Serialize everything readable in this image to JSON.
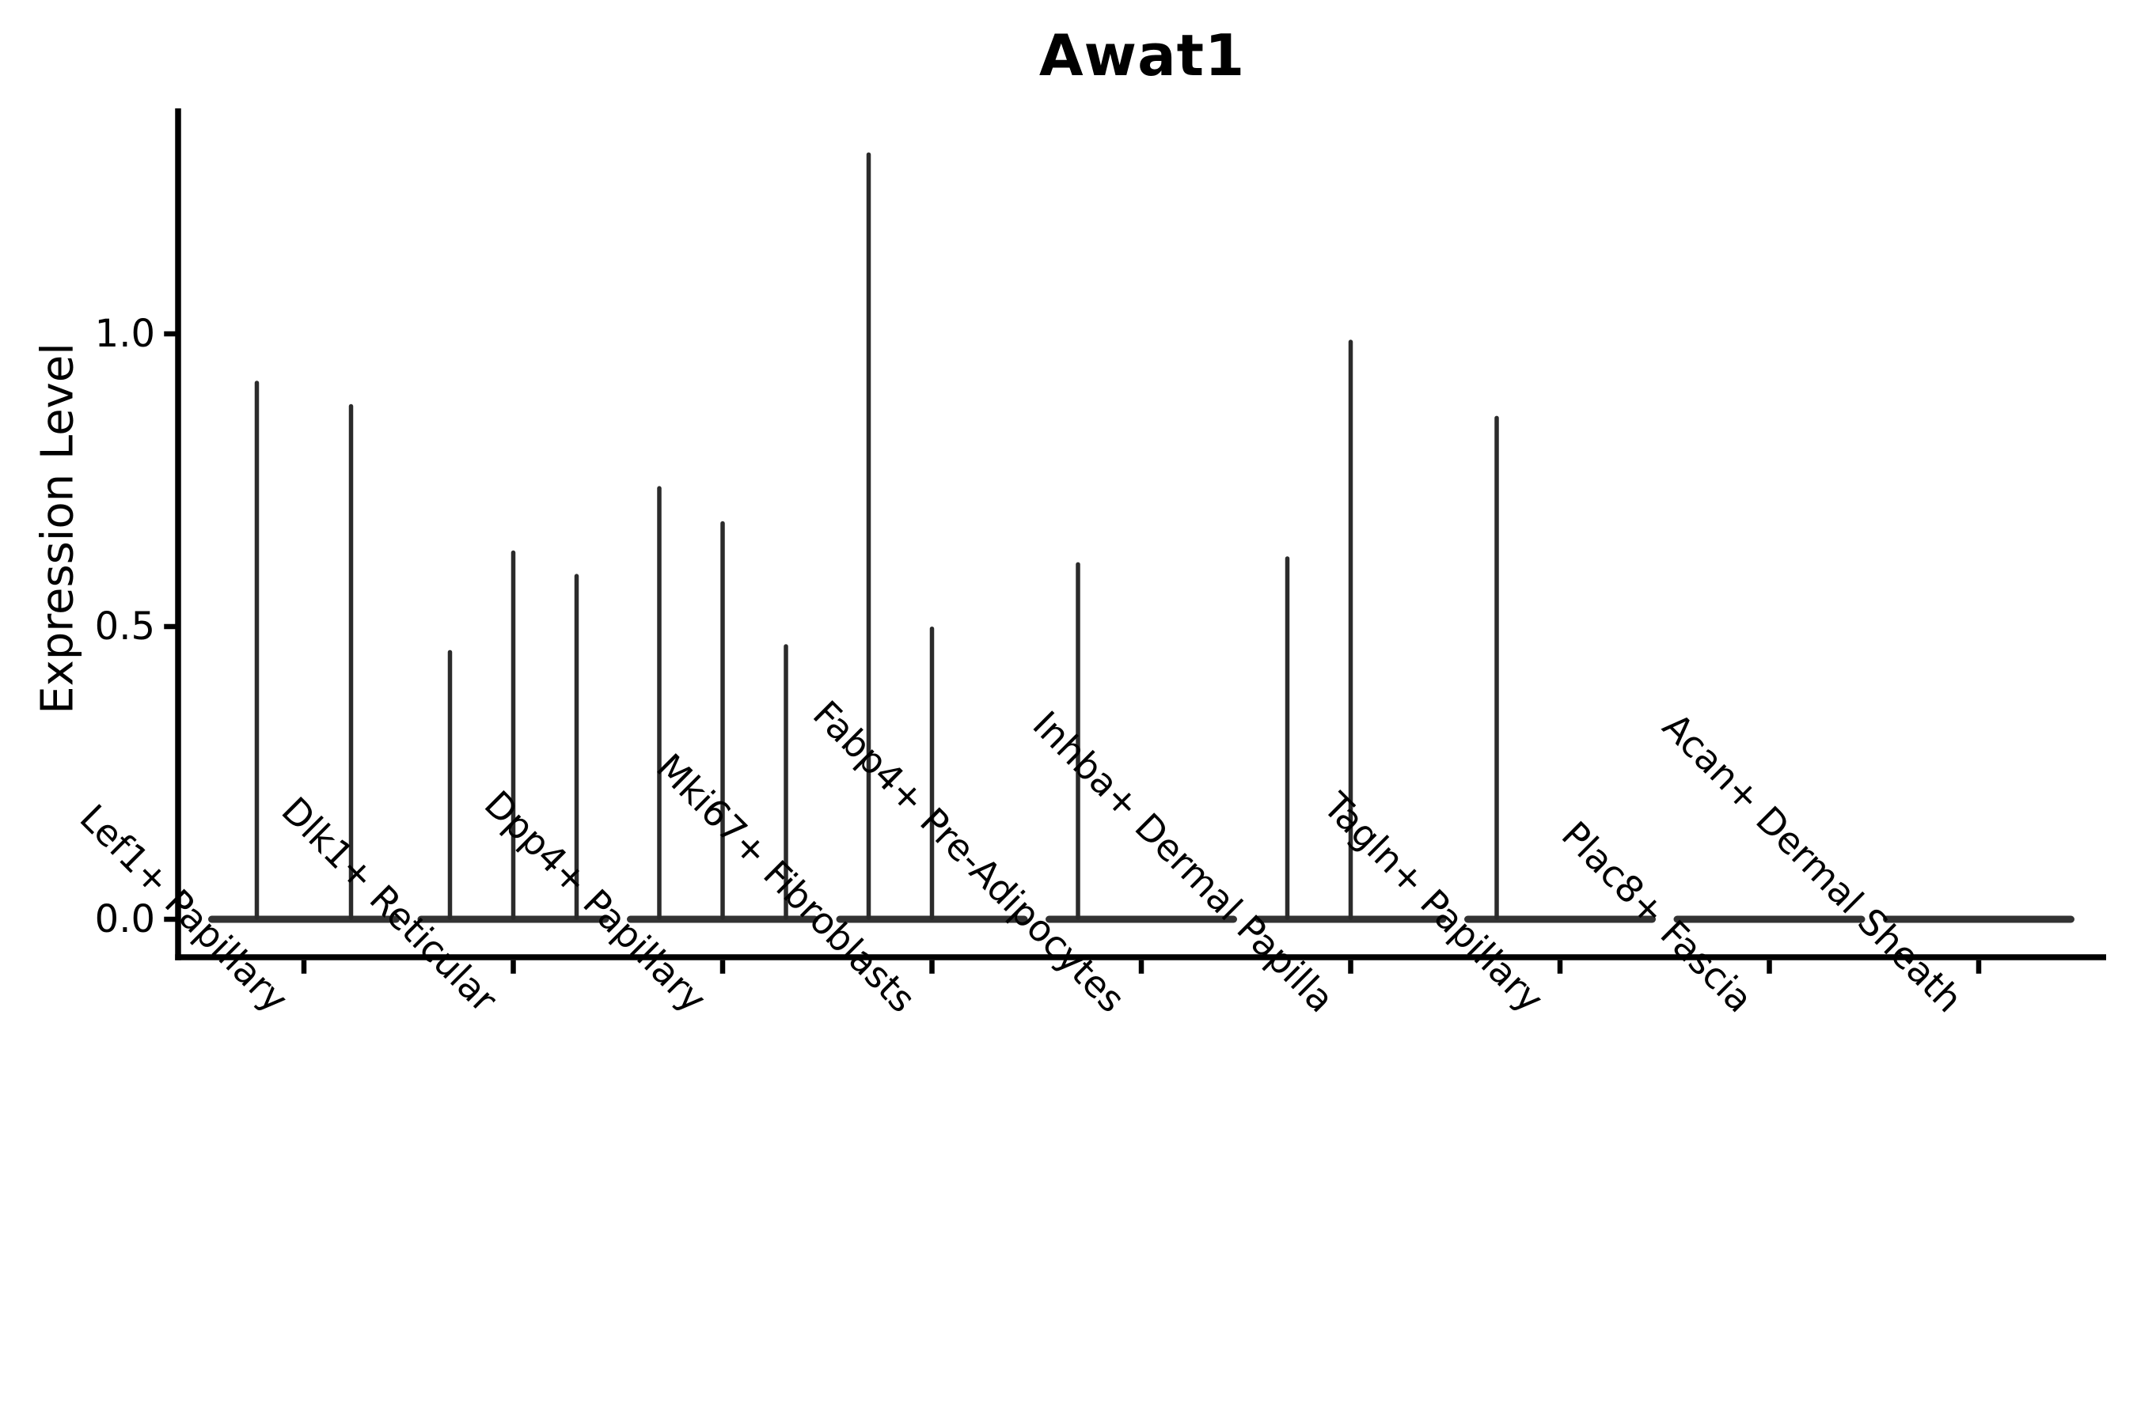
{
  "title": "Awat1",
  "axes": {
    "y_label": "Expression Level",
    "y_ticks": [
      {
        "label": "0.0",
        "value": 0.0
      },
      {
        "label": "0.5",
        "value": 0.5
      },
      {
        "label": "1.0",
        "value": 1.0
      }
    ],
    "x_categories": [
      "Lef1+ Papillary",
      "Dlk1+ Reticular",
      "Dpp4+ Papillary",
      "Mki67+ Fibroblasts",
      "Fabp4+ Pre-Adipocytes",
      "Inhba+ Dermal Papilla",
      "Tagln+ Papillary",
      "Plac8+ Fascia",
      "Acan+ Dermal Sheath"
    ]
  },
  "colors": {
    "spike": "#2b2b2b",
    "baseline": "#333333",
    "axis": "#000000",
    "text": "#000000",
    "background": "#ffffff"
  },
  "chart_data": {
    "type": "violin",
    "title": "Awat1",
    "xlabel": "",
    "ylabel": "Expression Level",
    "ylim": [
      -0.065,
      1.385
    ],
    "y_tick_values": [
      0.0,
      0.5,
      1.0
    ],
    "x_tick_rotation": 45,
    "grid": false,
    "legend": "none",
    "description": "Needle-thin violins collapsed at 0 with sparse high-expression spikes; spike value = maximum Expression Level reached per violin, 0 = flat baseline only.",
    "categories": [
      "Lef1+ Papillary",
      "Dlk1+ Reticular",
      "Dpp4+ Papillary",
      "Mki67+ Fibroblasts",
      "Fabp4+ Pre-Adipocytes",
      "Inhba+ Dermal Papilla",
      "Tagln+ Papillary",
      "Plac8+ Fascia",
      "Acan+ Dermal Sheath"
    ],
    "violins": [
      {
        "category": "Lef1+ Papillary",
        "spikes": [
          0.92,
          0.88
        ]
      },
      {
        "category": "Dlk1+ Reticular",
        "spikes": [
          0.46,
          0.63,
          0.59
        ]
      },
      {
        "category": "Dpp4+ Papillary",
        "spikes": [
          0.74,
          0.68,
          0.47
        ]
      },
      {
        "category": "Mki67+ Fibroblasts",
        "spikes": [
          1.31,
          0.5,
          0
        ]
      },
      {
        "category": "Fabp4+ Pre-Adipocytes",
        "spikes": [
          0.61,
          0,
          0
        ]
      },
      {
        "category": "Inhba+ Dermal Papilla",
        "spikes": [
          0.62,
          0.99,
          0
        ]
      },
      {
        "category": "Tagln+ Papillary",
        "spikes": [
          0.86,
          0,
          0
        ]
      },
      {
        "category": "Plac8+ Fascia",
        "spikes": [
          0,
          0,
          0
        ]
      },
      {
        "category": "Acan+ Dermal Sheath",
        "spikes": [
          0,
          0,
          0
        ]
      }
    ]
  }
}
